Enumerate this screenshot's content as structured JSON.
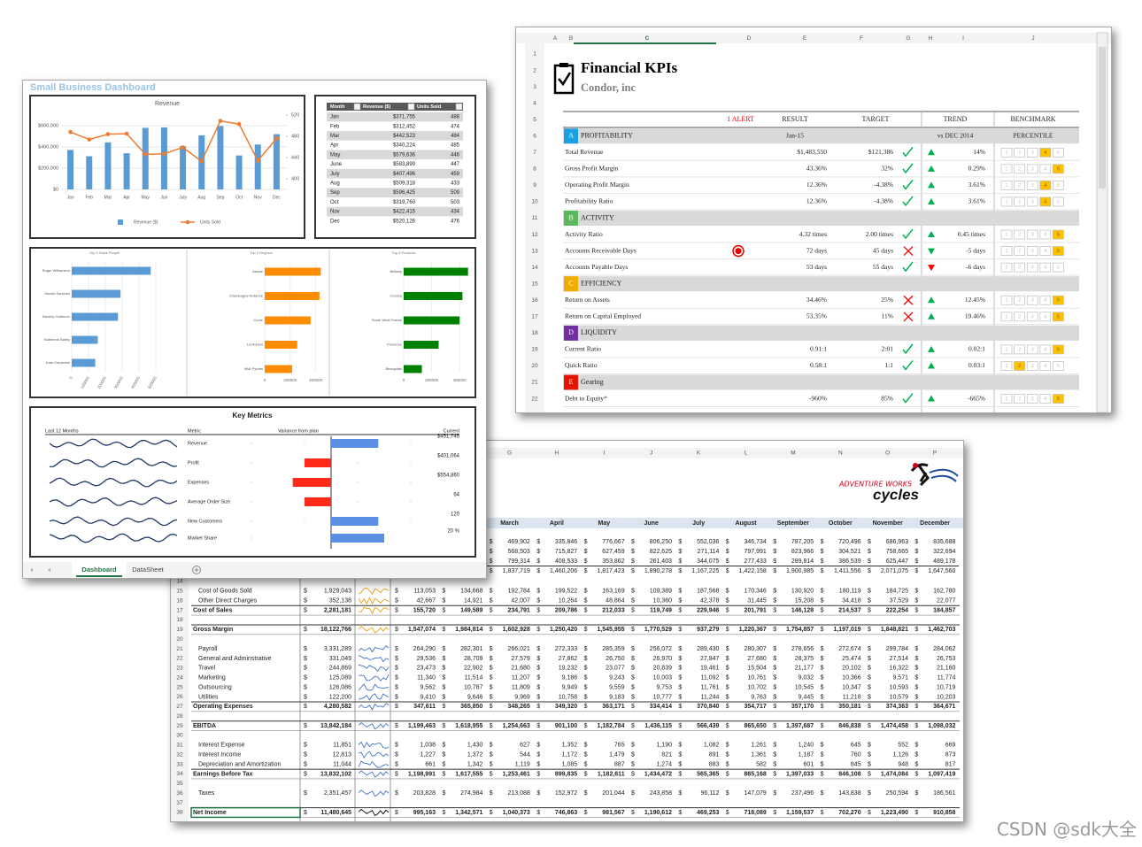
{
  "dashboard": {
    "title": "Small Business Dashboard",
    "revenue_chart": {
      "type": "bar",
      "title": "Revenue",
      "categories": [
        "Jan",
        "Feb",
        "Mar",
        "Apr",
        "May",
        "Jun",
        "July",
        "Aug",
        "Sep",
        "Oct",
        "Nov",
        "Dec"
      ],
      "series": [
        {
          "name": "Revenue ($)",
          "color": "#5b9bd5",
          "values": [
            371755,
            312452,
            442523,
            340224,
            579636,
            583899,
            407496,
            509318,
            596425,
            319760,
            422415,
            520126
          ]
        },
        {
          "name": "Units Sold",
          "color": "#ed7d31",
          "type": "line",
          "axis": "y2",
          "values": [
            488,
            474,
            484,
            485,
            446,
            447,
            459,
            433,
            509,
            503,
            434,
            476
          ]
        }
      ],
      "ylim": [
        0,
        700000
      ],
      "yticks": [
        {
          "value": 0,
          "label": "$0"
        },
        {
          "value": 200000,
          "label": "$200,000"
        },
        {
          "value": 400000,
          "label": "$400,000"
        },
        {
          "value": 600000,
          "label": "$600,000"
        }
      ],
      "y2lim": [
        380,
        520
      ],
      "y2ticks": [
        400,
        440,
        480,
        520
      ]
    },
    "table": {
      "columns": [
        "Month",
        "Revenue ($)",
        "Units Sold"
      ],
      "rows": [
        [
          "Jan",
          "$371,755",
          "488"
        ],
        [
          "Feb",
          "$312,452",
          "474"
        ],
        [
          "Mar",
          "$442,523",
          "484"
        ],
        [
          "Apr",
          "$340,224",
          "485"
        ],
        [
          "May",
          "$579,636",
          "446"
        ],
        [
          "June",
          "$583,899",
          "447"
        ],
        [
          "July",
          "$407,496",
          "459"
        ],
        [
          "Aug",
          "$509,318",
          "433"
        ],
        [
          "Sep",
          "$596,425",
          "509"
        ],
        [
          "Oct",
          "$319,760",
          "503"
        ],
        [
          "Nov",
          "$422,415",
          "434"
        ],
        [
          "Dec",
          "$520,126",
          "476"
        ]
      ]
    },
    "bar_charts": [
      {
        "type": "bar",
        "title": "Top 5 Sales People",
        "color": "#5b9bd5",
        "categories": [
          "Roger Williamson",
          "Harold Sanchez",
          "Beverly Gutierrez",
          "Katherine Bailey",
          "Juan Carpenter"
        ],
        "values": [
          470000,
          290000,
          275000,
          155000,
          140000
        ],
        "xlim": [
          0,
          500000
        ],
        "xticks": [
          0,
          100000,
          200000,
          300000,
          400000,
          500000
        ]
      },
      {
        "type": "bar",
        "title": "Top 5 Regions",
        "color": "#ff8c00",
        "categories": [
          "Alsace",
          "Champagne-Ardenne",
          "Corse",
          "La Runion",
          "Midi-Pyrnes"
        ],
        "values": [
          440000,
          430000,
          360000,
          255000,
          215000
        ],
        "xlim": [
          0,
          500000
        ],
        "xticks": [
          0,
          200000,
          400000
        ]
      },
      {
        "type": "bar",
        "title": "Top 5 Products",
        "color": "#008000",
        "categories": [
          "Brittany",
          "Corsica",
          "South West France",
          "Provence",
          "Beaujolais"
        ],
        "values": [
          460000,
          420000,
          400000,
          250000,
          130000
        ],
        "xlim": [
          0,
          500000
        ],
        "xticks": [
          0,
          200000,
          400000
        ]
      }
    ],
    "key_metrics": {
      "title": "Key Metrics",
      "columns": [
        "Last 12 Months",
        "Metric",
        "Variance from plan",
        "Current"
      ],
      "xlim": [
        -30,
        30
      ],
      "metrics": [
        {
          "name": "Revenue",
          "variance": 16,
          "current": "$451,745"
        },
        {
          "name": "Profit",
          "variance": -9,
          "current": "$401,064"
        },
        {
          "name": "Expenses",
          "variance": -13,
          "current": "$554,860"
        },
        {
          "name": "Average Order Size",
          "variance": -9,
          "current": "64"
        },
        {
          "name": "New Customers",
          "variance": 16,
          "current": "120"
        },
        {
          "name": "Market Share",
          "variance": 18,
          "current": "20 %"
        }
      ]
    },
    "tabs": [
      "Dashboard",
      "DataSheet"
    ]
  },
  "kpi": {
    "title": "Financial KPIs",
    "subtitle": "Condor, inc",
    "columns": [
      "A",
      "B",
      "C",
      "D",
      "E",
      "F",
      "G",
      "H",
      "I",
      "J"
    ],
    "row_numbers": [
      1,
      2,
      3,
      4,
      5,
      6,
      7,
      8,
      9,
      10,
      11,
      12,
      13,
      14,
      15,
      16,
      17,
      18,
      19,
      20,
      21,
      22
    ],
    "headers": {
      "alert": "1 ALERT",
      "result": "RESULT",
      "target": "TARGET",
      "trend": "TREND",
      "benchmark": "BENCHMARK"
    },
    "benchmark_levels": [
      1,
      2,
      3,
      4,
      5
    ],
    "rows": [
      {
        "section": "A",
        "name": "PROFITABILITY",
        "color": "#1ba1e2",
        "result": "Jan-15",
        "trend": "vs DEC 2014",
        "benchmark": "PERCENTILE"
      },
      {
        "name": "Total Revenue",
        "result": "$1,483,550",
        "target": "$121,386",
        "status": "ok",
        "arrow": "up",
        "arrow_color": "#00b050",
        "trend": "14%",
        "percentile": 4
      },
      {
        "name": "Gross Profit Margin",
        "result": "43.36%",
        "target": "32%",
        "status": "ok",
        "arrow": "up",
        "arrow_color": "#00b050",
        "trend": "0.29%",
        "percentile": 5
      },
      {
        "name": "Operating Profit Margin",
        "result": "12.36%",
        "target": "-4.38%",
        "status": "ok",
        "arrow": "up",
        "arrow_color": "#00b050",
        "trend": "3.61%",
        "percentile": 4
      },
      {
        "name": "Profitability Ratio",
        "result": "12.36%",
        "target": "-4.38%",
        "status": "ok",
        "arrow": "up",
        "arrow_color": "#00b050",
        "trend": "3.61%",
        "percentile": 4
      },
      {
        "section": "B",
        "name": "ACTIVITY",
        "color": "#5cb85c"
      },
      {
        "name": "Activity Ratio",
        "result": "4.32 times",
        "target": "2.00 times",
        "status": "ok",
        "arrow": "up",
        "arrow_color": "#00b050",
        "trend": "0.45 times",
        "percentile": 5
      },
      {
        "name": "Accounts Receivable Days",
        "alert": true,
        "result": "72 days",
        "target": "45 days",
        "status": "bad",
        "arrow": "down",
        "arrow_color": "#00b050",
        "trend": "-5 days",
        "percentile": 5
      },
      {
        "name": "Accounts Payable Days",
        "result": "53 days",
        "target": "55 days",
        "status": "ok",
        "arrow": "down",
        "arrow_color": "#ff0000",
        "trend": "-6 days"
      },
      {
        "section": "C",
        "name": "EFFICIENCY",
        "color": "#f0ad00"
      },
      {
        "name": "Return on Assets",
        "result": "34.46%",
        "target": "25%",
        "status": "bad",
        "arrow": "up",
        "arrow_color": "#00b050",
        "trend": "12.45%",
        "percentile": 5
      },
      {
        "name": "Return on Capital Employed",
        "result": "53.35%",
        "target": "11%",
        "status": "bad",
        "arrow": "up",
        "arrow_color": "#00b050",
        "trend": "19.46%",
        "percentile": 5
      },
      {
        "section": "D",
        "name": "LIQUIDITY",
        "color": "#7030a0"
      },
      {
        "name": "Current Ratio",
        "result": "0.91:1",
        "target": "2:01",
        "status": "ok",
        "arrow": "up",
        "arrow_color": "#00b050",
        "trend": "0.02:1",
        "percentile": 5
      },
      {
        "name": "Quick Ratio",
        "result": "0.58:1",
        "target": "1:1",
        "status": "ok",
        "arrow": "up",
        "arrow_color": "#00b050",
        "trend": "0.03:1",
        "percentile": 2
      },
      {
        "section": "E",
        "name": "Gearing",
        "color": "#e51400"
      },
      {
        "name": "Debt to Equity*",
        "result": "-960%",
        "target": "85%",
        "status": "ok",
        "arrow": "up",
        "arrow_color": "#00b050",
        "trend": "-665%",
        "percentile": 5
      }
    ]
  },
  "pl": {
    "columns": [
      "G",
      "H",
      "I",
      "J",
      "K",
      "L",
      "M",
      "N",
      "O",
      "P"
    ],
    "months": [
      "March",
      "April",
      "May",
      "June",
      "July",
      "August",
      "September",
      "October",
      "November",
      "December"
    ],
    "currency": "$",
    "logo": {
      "line1": "ADVENTURE WORKS",
      "line2": "cycles"
    },
    "top_rows": [
      [
        "469,902",
        "335,846",
        "776,667",
        "806,250",
        "552,036",
        "346,734",
        "787,205",
        "720,496",
        "686,963",
        "835,688"
      ],
      [
        "568,503",
        "715,827",
        "627,459",
        "822,625",
        "271,114",
        "797,991",
        "823,966",
        "304,521",
        "758,665",
        "322,694"
      ],
      [
        "799,314",
        "408,533",
        "353,862",
        "261,403",
        "344,075",
        "277,433",
        "289,814",
        "386,539",
        "625,447",
        "489,178"
      ],
      [
        "1,837,719",
        "1,460,206",
        "1,817,423",
        "1,890,278",
        "1,167,225",
        "1,422,158",
        "1,900,985",
        "1,411,556",
        "2,071,075",
        "1,647,560"
      ]
    ],
    "rows": [
      {
        "n": 14
      },
      {
        "n": 15,
        "label": "Cost of Goods Sold",
        "total": "1,929,043",
        "spark": "#e6a117",
        "values": [
          "113,053",
          "134,668",
          "192,784",
          "199,522",
          "163,169",
          "109,389",
          "187,568",
          "170,346",
          "130,920",
          "180,119",
          "184,725",
          "162,780"
        ]
      },
      {
        "n": 16,
        "label": "Other Direct Charges",
        "total": "352,138",
        "spark": "#e6a117",
        "values": [
          "42,667",
          "14,921",
          "42,007",
          "10,264",
          "48,864",
          "10,360",
          "42,378",
          "31,445",
          "15,208",
          "34,418",
          "37,529",
          "22,077"
        ]
      },
      {
        "n": 17,
        "label": "Cost of Sales",
        "bold": true,
        "total": "2,281,181",
        "spark": "#e6a117",
        "values": [
          "155,720",
          "149,589",
          "234,791",
          "209,786",
          "212,033",
          "119,749",
          "229,946",
          "201,791",
          "146,128",
          "214,537",
          "222,254",
          "184,857"
        ]
      },
      {
        "n": 18
      },
      {
        "n": 19,
        "label": "Gross Margin",
        "bold": true,
        "total": "18,122,766",
        "spark": "#e6a117",
        "values": [
          "1,547,074",
          "1,984,814",
          "1,602,928",
          "1,250,420",
          "1,545,955",
          "1,770,529",
          "937,279",
          "1,220,367",
          "1,754,857",
          "1,197,019",
          "1,848,821",
          "1,462,703"
        ]
      },
      {
        "n": 20
      },
      {
        "n": 21,
        "label": "Payroll",
        "total": "3,331,289",
        "spark": "#4472c4",
        "values": [
          "264,290",
          "282,301",
          "266,021",
          "272,333",
          "285,359",
          "256,072",
          "289,430",
          "280,307",
          "278,656",
          "272,674",
          "299,784",
          "284,062"
        ]
      },
      {
        "n": 22,
        "label": "General and Adminstrative",
        "total": "331,049",
        "spark": "#4472c4",
        "values": [
          "29,536",
          "28,709",
          "27,579",
          "27,862",
          "26,750",
          "26,970",
          "27,847",
          "27,680",
          "28,375",
          "25,474",
          "27,514",
          "26,753"
        ]
      },
      {
        "n": 23,
        "label": "Travel",
        "total": "244,869",
        "spark": "#4472c4",
        "values": [
          "23,473",
          "22,902",
          "21,680",
          "19,232",
          "23,077",
          "20,839",
          "19,461",
          "15,504",
          "21,177",
          "20,102",
          "16,322",
          "21,160"
        ]
      },
      {
        "n": 24,
        "label": "Marketing",
        "total": "125,089",
        "spark": "#4472c4",
        "values": [
          "11,340",
          "11,514",
          "11,207",
          "9,186",
          "9,243",
          "10,003",
          "11,092",
          "10,761",
          "9,032",
          "10,366",
          "9,571",
          "11,774"
        ]
      },
      {
        "n": 25,
        "label": "Outsourcing",
        "total": "126,086",
        "spark": "#4472c4",
        "values": [
          "9,562",
          "10,787",
          "11,809",
          "9,949",
          "9,559",
          "9,753",
          "11,761",
          "10,702",
          "10,545",
          "10,347",
          "10,593",
          "10,719"
        ]
      },
      {
        "n": 26,
        "label": "Utilities",
        "total": "122,200",
        "spark": "#4472c4",
        "values": [
          "9,410",
          "9,646",
          "9,969",
          "10,758",
          "9,183",
          "10,777",
          "11,244",
          "9,763",
          "9,445",
          "11,218",
          "10,579",
          "10,203"
        ]
      },
      {
        "n": 27,
        "label": "Operating Expenses",
        "bold": true,
        "total": "4,280,582",
        "spark": "#4472c4",
        "values": [
          "347,611",
          "365,850",
          "348,265",
          "349,320",
          "363,171",
          "334,414",
          "370,840",
          "354,717",
          "357,170",
          "350,181",
          "374,363",
          "364,671"
        ]
      },
      {
        "n": 28
      },
      {
        "n": 29,
        "label": "EBITDA",
        "bold": true,
        "total": "13,842,184",
        "spark": "#4472c4",
        "values": [
          "1,199,463",
          "1,618,955",
          "1,254,663",
          "901,100",
          "1,182,784",
          "1,436,115",
          "566,439",
          "865,650",
          "1,397,687",
          "846,838",
          "1,474,458",
          "1,098,032"
        ]
      },
      {
        "n": 30
      },
      {
        "n": 31,
        "label": "Interest Expense",
        "total": "11,851",
        "spark": "#4472c4",
        "values": [
          "1,038",
          "1,430",
          "627",
          "1,352",
          "765",
          "1,190",
          "1,082",
          "1,261",
          "1,240",
          "645",
          "552",
          "669"
        ]
      },
      {
        "n": 32,
        "label": "Interest Income",
        "total": "12,813",
        "spark": "#4472c4",
        "values": [
          "1,227",
          "1,372",
          "544",
          "1,172",
          "1,479",
          "821",
          "891",
          "1,361",
          "1,187",
          "760",
          "1,126",
          "873"
        ]
      },
      {
        "n": 33,
        "label": "Depreciation and Amortization",
        "total": "11,044",
        "spark": "#4472c4",
        "values": [
          "661",
          "1,342",
          "1,119",
          "1,085",
          "887",
          "1,274",
          "883",
          "582",
          "601",
          "845",
          "948",
          "817"
        ]
      },
      {
        "n": 34,
        "label": "Earnings Before Tax",
        "bold": true,
        "total": "13,832,102",
        "spark": "#4472c4",
        "values": [
          "1,198,991",
          "1,617,555",
          "1,253,461",
          "899,835",
          "1,182,611",
          "1,434,472",
          "565,365",
          "865,168",
          "1,397,033",
          "846,108",
          "1,474,084",
          "1,097,419"
        ]
      },
      {
        "n": 35
      },
      {
        "n": 36,
        "label": "Taxes",
        "total": "2,351,457",
        "spark": "#4472c4",
        "values": [
          "203,828",
          "274,984",
          "213,088",
          "152,972",
          "201,044",
          "243,858",
          "96,112",
          "147,079",
          "237,496",
          "143,838",
          "250,594",
          "186,561"
        ]
      },
      {
        "n": 37
      },
      {
        "n": 38,
        "label": "Net Income",
        "bold": true,
        "selected": true,
        "total": "11,480,645",
        "spark": "#000000",
        "values": [
          "995,163",
          "1,342,571",
          "1,040,373",
          "746,863",
          "981,567",
          "1,190,612",
          "469,253",
          "718,089",
          "1,159,537",
          "702,270",
          "1,223,490",
          "910,858"
        ]
      }
    ]
  },
  "watermark": "CSDN @sdk大全"
}
